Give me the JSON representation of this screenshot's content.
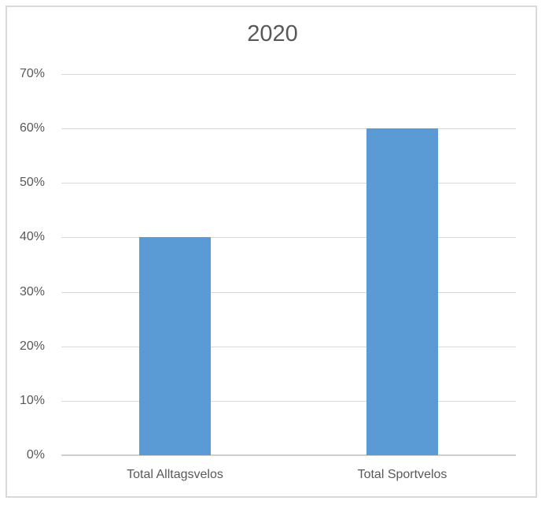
{
  "chart_data": {
    "type": "bar",
    "title": "2020",
    "categories": [
      "Total Alltagsvelos",
      "Total Sportvelos"
    ],
    "values": [
      40,
      60
    ],
    "unit": "%",
    "xlabel": "",
    "ylabel": "",
    "ylim": [
      0,
      70
    ],
    "yticks": [
      0,
      10,
      20,
      30,
      40,
      50,
      60,
      70
    ],
    "ytick_labels": [
      "0%",
      "10%",
      "20%",
      "30%",
      "40%",
      "50%",
      "60%",
      "70%"
    ],
    "grid": true,
    "legend": "none"
  },
  "colors": {
    "bar": "#5B9BD5",
    "gridline": "#D9D9D9",
    "axis_line": "#CFCFCF",
    "text": "#595959",
    "frame_border": "#D9D9D9",
    "background": "#FFFFFF"
  }
}
